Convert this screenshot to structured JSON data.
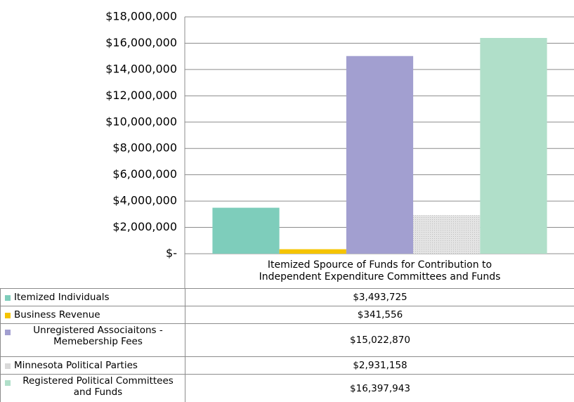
{
  "chart_data": {
    "type": "bar",
    "categories": [
      "Itemized Spource of Funds for Contribution to Independent Expenditure Committees and Funds"
    ],
    "series": [
      {
        "name": "Itemized Individuals",
        "color": "#7ecdbb",
        "values": [
          3493725
        ],
        "value_labels": [
          "$3,493,725"
        ]
      },
      {
        "name": "Business Revenue",
        "color": "#f5c400",
        "values": [
          341556
        ],
        "value_labels": [
          "$341,556"
        ]
      },
      {
        "name": "Unregistered Associaitons - Memebership Fees",
        "color": "#a29fd0",
        "values": [
          15022870
        ],
        "value_labels": [
          "$15,022,870"
        ]
      },
      {
        "name": "Minnesota Political Parties",
        "color": "#d9d9d9",
        "values": [
          2931158
        ],
        "value_labels": [
          "$2,931,158"
        ]
      },
      {
        "name": "Registered Political Committees and Funds",
        "color": "#b0dfc9",
        "values": [
          16397943
        ],
        "value_labels": [
          "$16,397,943"
        ]
      }
    ],
    "ylim": [
      0,
      18000000
    ],
    "yticks": [
      {
        "value": 0,
        "label": "$-"
      },
      {
        "value": 2000000,
        "label": "$2,000,000"
      },
      {
        "value": 4000000,
        "label": "$4,000,000"
      },
      {
        "value": 6000000,
        "label": "$6,000,000"
      },
      {
        "value": 8000000,
        "label": "$8,000,000"
      },
      {
        "value": 10000000,
        "label": "$10,000,000"
      },
      {
        "value": 12000000,
        "label": "$12,000,000"
      },
      {
        "value": 14000000,
        "label": "$14,000,000"
      },
      {
        "value": 16000000,
        "label": "$16,000,000"
      },
      {
        "value": 18000000,
        "label": "$18,000,000"
      }
    ],
    "grid": true,
    "data_table": true
  }
}
